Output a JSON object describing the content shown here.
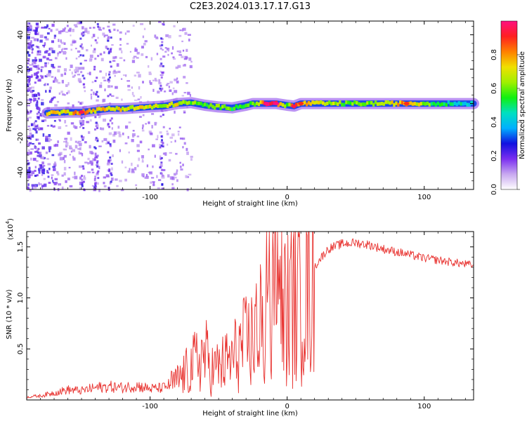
{
  "title": "C2E3.2024.013.17.17.G13",
  "colors": {
    "snr_line": "#e8312e",
    "background": "#ffffff",
    "spectrogram_floor": "#ffffff"
  },
  "chart_data": [
    {
      "type": "heatmap",
      "xlabel": "Height of straight line (km)",
      "ylabel": "Frequency (Hz)",
      "xlim": [
        -190,
        136
      ],
      "ylim": [
        -50,
        48
      ],
      "xticks": [
        -100,
        0,
        100
      ],
      "yticks": [
        -40,
        -20,
        0,
        20,
        40
      ],
      "colorbar": {
        "label": "Normalized spectral amplitude",
        "range": [
          0,
          1
        ],
        "ticks": [
          "0.0",
          "0.2",
          "0.4",
          "0.6",
          "0.8"
        ],
        "colors": [
          "#ffffff",
          "#c8a8f0",
          "#7a2ef0",
          "#1010e0",
          "#00b0ff",
          "#00e0c0",
          "#10f010",
          "#a0f000",
          "#f0e000",
          "#ff8000",
          "#ff2020",
          "#ff1080"
        ]
      },
      "ridge": [
        {
          "x": -175,
          "f": -5.5,
          "a": 0.75
        },
        {
          "x": -160,
          "f": -5,
          "a": 0.7
        },
        {
          "x": -150,
          "f": -5,
          "a": 0.85
        },
        {
          "x": -140,
          "f": -4,
          "a": 0.7
        },
        {
          "x": -130,
          "f": -3,
          "a": 0.75
        },
        {
          "x": -120,
          "f": -3,
          "a": 0.7
        },
        {
          "x": -110,
          "f": -2.5,
          "a": 0.7
        },
        {
          "x": -100,
          "f": -2,
          "a": 0.7
        },
        {
          "x": -90,
          "f": -1.5,
          "a": 0.65
        },
        {
          "x": -80,
          "f": 0,
          "a": 0.7
        },
        {
          "x": -70,
          "f": 0.5,
          "a": 0.6
        },
        {
          "x": -60,
          "f": -1,
          "a": 0.55
        },
        {
          "x": -50,
          "f": -2,
          "a": 0.6
        },
        {
          "x": -40,
          "f": -2.5,
          "a": 0.55
        },
        {
          "x": -30,
          "f": -1,
          "a": 0.6
        },
        {
          "x": -25,
          "f": 0,
          "a": 0.55
        },
        {
          "x": -15,
          "f": 0,
          "a": 0.95
        },
        {
          "x": -8,
          "f": 0,
          "a": 0.95
        },
        {
          "x": 0,
          "f": -1,
          "a": 0.6
        },
        {
          "x": 5,
          "f": -1.5,
          "a": 0.85
        },
        {
          "x": 10,
          "f": 0,
          "a": 0.8
        },
        {
          "x": 20,
          "f": 0,
          "a": 0.75
        },
        {
          "x": 40,
          "f": 0,
          "a": 0.6
        },
        {
          "x": 60,
          "f": 0,
          "a": 0.6
        },
        {
          "x": 87,
          "f": 0,
          "a": 0.8
        },
        {
          "x": 110,
          "f": 0,
          "a": 0.5
        },
        {
          "x": 136,
          "f": 0,
          "a": 0.4
        }
      ]
    },
    {
      "type": "line",
      "xlabel": "Height of straight line (km)",
      "ylabel": "SNR (10 * v/v)",
      "y_multiplier": "(x10",
      "y_multiplier_exp": "4",
      "y_multiplier_close": ")",
      "xlim": [
        -190,
        136
      ],
      "ylim": [
        0,
        16500
      ],
      "xticks": [
        -100,
        0,
        100
      ],
      "yticks": [
        5000,
        10000,
        15000
      ],
      "ytick_labels": [
        "0.5",
        "1.0",
        "1.5"
      ],
      "series": [
        {
          "x": [
            -190,
            -180,
            -170,
            -160,
            -150,
            -140,
            -130,
            -120,
            -110,
            -100,
            -90,
            -80,
            -75,
            -70,
            -65,
            -60,
            -55,
            -50,
            -45,
            -40,
            -35,
            -30,
            -25,
            -20,
            -15,
            -10,
            -5,
            0,
            5,
            10,
            15,
            20,
            25,
            30,
            40,
            50,
            60,
            70,
            80,
            90,
            100,
            110,
            120,
            130,
            136
          ],
          "y": [
            300,
            400,
            700,
            1000,
            900,
            1200,
            1300,
            1200,
            1400,
            1100,
            1200,
            1900,
            2500,
            3200,
            4000,
            4500,
            3000,
            3200,
            3600,
            4000,
            5000,
            5500,
            6000,
            7000,
            7500,
            8000,
            8500,
            9000,
            10000,
            11000,
            12000,
            13000,
            14000,
            14800,
            15300,
            15400,
            15200,
            14800,
            14500,
            14200,
            13900,
            13700,
            13500,
            13300,
            13200
          ]
        }
      ]
    }
  ]
}
